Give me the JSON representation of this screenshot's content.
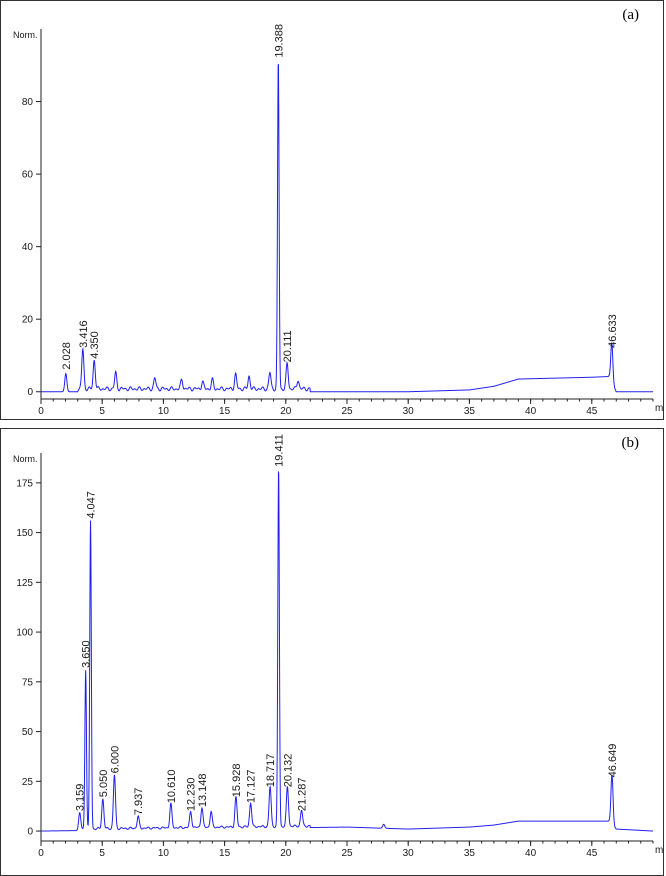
{
  "chart_data": [
    {
      "type": "line",
      "panel_label": "(a)",
      "ylabel": "Norm.",
      "xlabel": "min",
      "xlim": [
        0,
        50
      ],
      "ylim": [
        -2,
        100
      ],
      "x_ticks": [
        0,
        5,
        10,
        15,
        20,
        25,
        30,
        35,
        40,
        45
      ],
      "y_ticks": [
        0,
        20,
        40,
        60,
        80
      ],
      "baseline_points": [
        [
          0,
          0
        ],
        [
          25,
          0
        ],
        [
          30,
          0
        ],
        [
          35,
          0.5
        ],
        [
          37,
          1.5
        ],
        [
          39,
          3.5
        ],
        [
          45,
          4
        ],
        [
          46.4,
          4.2
        ],
        [
          47,
          0
        ],
        [
          50,
          0
        ]
      ],
      "peaks": [
        {
          "time": 2.028,
          "height": 5,
          "label": "2.028"
        },
        {
          "time": 3.416,
          "height": 11,
          "label": "3.416"
        },
        {
          "time": 4.35,
          "height": 8,
          "label": "4.350"
        },
        {
          "time": 6.1,
          "height": 4.5
        },
        {
          "time": 9.3,
          "height": 3
        },
        {
          "time": 11.5,
          "height": 2.5
        },
        {
          "time": 13.2,
          "height": 2
        },
        {
          "time": 14.0,
          "height": 2.5
        },
        {
          "time": 15.9,
          "height": 4
        },
        {
          "time": 17.0,
          "height": 3.5
        },
        {
          "time": 18.7,
          "height": 4.5
        },
        {
          "time": 19.388,
          "height": 91,
          "label": "19.388"
        },
        {
          "time": 20.111,
          "height": 7,
          "label": "20.111"
        },
        {
          "time": 21.0,
          "height": 2.5
        },
        {
          "time": 46.633,
          "height": 11,
          "label": "46.633"
        }
      ]
    },
    {
      "type": "line",
      "panel_label": "(b)",
      "ylabel": "Norm.",
      "xlabel": "min",
      "xlim": [
        0,
        50
      ],
      "ylim": [
        -5,
        190
      ],
      "x_ticks": [
        0,
        5,
        10,
        15,
        20,
        25,
        30,
        35,
        40,
        45
      ],
      "y_ticks": [
        0,
        25,
        50,
        75,
        100,
        125,
        150,
        175
      ],
      "baseline_points": [
        [
          0,
          0
        ],
        [
          25,
          2
        ],
        [
          30,
          1
        ],
        [
          35,
          2
        ],
        [
          37,
          3
        ],
        [
          39,
          5
        ],
        [
          45,
          5
        ],
        [
          46.4,
          5
        ],
        [
          47,
          1
        ],
        [
          50,
          0
        ]
      ],
      "peaks": [
        {
          "time": 3.159,
          "height": 8,
          "label": "3.159"
        },
        {
          "time": 3.65,
          "height": 80,
          "label": "3.650"
        },
        {
          "time": 4.047,
          "height": 155,
          "label": "4.047"
        },
        {
          "time": 5.05,
          "height": 15,
          "label": "5.050"
        },
        {
          "time": 6.0,
          "height": 27,
          "label": "6.000"
        },
        {
          "time": 7.937,
          "height": 6,
          "label": "7.937"
        },
        {
          "time": 10.61,
          "height": 12,
          "label": "10.610"
        },
        {
          "time": 12.23,
          "height": 8,
          "label": "12.230"
        },
        {
          "time": 13.148,
          "height": 10,
          "label": "13.148"
        },
        {
          "time": 13.9,
          "height": 8
        },
        {
          "time": 15.928,
          "height": 15,
          "label": "15.928"
        },
        {
          "time": 17.127,
          "height": 12,
          "label": "17.127"
        },
        {
          "time": 18.717,
          "height": 20,
          "label": "18.717"
        },
        {
          "time": 19.411,
          "height": 181,
          "label": "19.411"
        },
        {
          "time": 20.132,
          "height": 20,
          "label": "20.132"
        },
        {
          "time": 21.287,
          "height": 8,
          "label": "21.287"
        },
        {
          "time": 28.0,
          "height": 2
        },
        {
          "time": 46.649,
          "height": 25,
          "label": "46.649"
        }
      ]
    }
  ]
}
